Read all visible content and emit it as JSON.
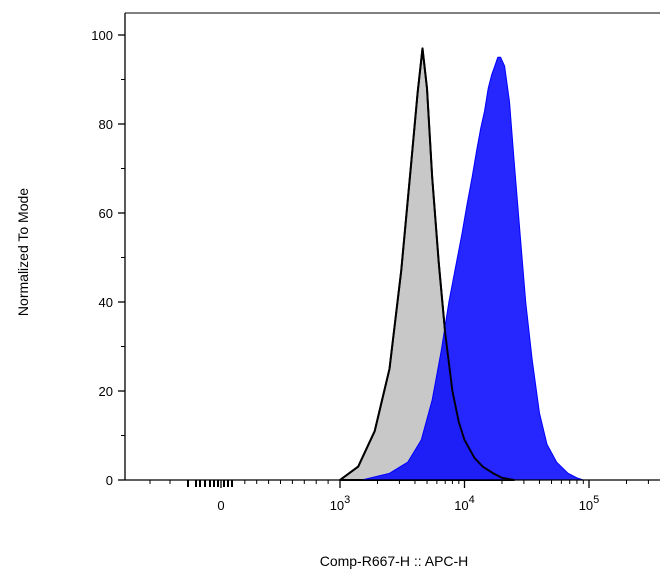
{
  "chart_data": {
    "type": "area",
    "xlabel": "Comp-R667-H :: APC-H",
    "ylabel": "Normalized To Mode",
    "x_scale": "biexponential",
    "ylim": [
      0,
      100
    ],
    "x_ticks": [
      {
        "value": 0,
        "label": "0",
        "exp": ""
      },
      {
        "value": 1000,
        "label": "10",
        "exp": "3"
      },
      {
        "value": 10000,
        "label": "10",
        "exp": "4"
      },
      {
        "value": 100000,
        "label": "10",
        "exp": "5"
      }
    ],
    "y_ticks": [
      0,
      20,
      40,
      60,
      80,
      100
    ],
    "series": [
      {
        "color": "#c8c8c8",
        "outline": "#000000",
        "x": [
          1000,
          1400,
          1900,
          2500,
          3100,
          3700,
          4200,
          4600,
          5000,
          5500,
          6200,
          7000,
          8000,
          9000,
          10000,
          12000,
          14000,
          17000,
          20000,
          25000
        ],
        "y": [
          0,
          3,
          11,
          25,
          47,
          70,
          87,
          97,
          88,
          68,
          49,
          33,
          20,
          13,
          9,
          5,
          3,
          1.5,
          0.5,
          0
        ]
      },
      {
        "color": "#0000ff",
        "outline": "#0000ff",
        "x": [
          1500,
          2500,
          3500,
          4500,
          5500,
          6500,
          7500,
          8500,
          9500,
          10500,
          11500,
          12500,
          13500,
          14500,
          15500,
          16500,
          17500,
          18500,
          19500,
          21000,
          23000,
          25000,
          28000,
          31000,
          35000,
          40000,
          46000,
          55000,
          68000,
          80000,
          90000
        ],
        "y": [
          0,
          1.5,
          4,
          9,
          18,
          29,
          40,
          48,
          55,
          62,
          68,
          74,
          79,
          83,
          88,
          91,
          93,
          95,
          95,
          93,
          85,
          72,
          55,
          40,
          27,
          15,
          8,
          4,
          1.5,
          0.5,
          0
        ]
      }
    ]
  }
}
